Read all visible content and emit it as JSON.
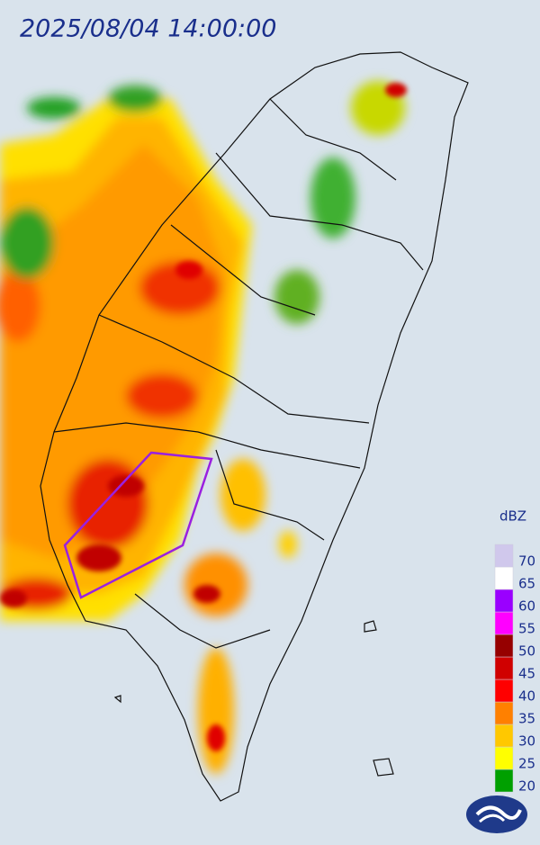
{
  "title": "2025/08/04 14:00:00",
  "legend": {
    "title": "dBZ",
    "ticks": [
      20,
      25,
      30,
      35,
      40,
      45,
      50,
      55,
      60,
      65,
      70
    ],
    "colors": [
      "#00a000",
      "#ffff00",
      "#ffc800",
      "#ff8000",
      "#ff0000",
      "#d00000",
      "#960000",
      "#ff00ff",
      "#9a00ff",
      "#ffffff",
      "#d0c8ec"
    ]
  }
}
